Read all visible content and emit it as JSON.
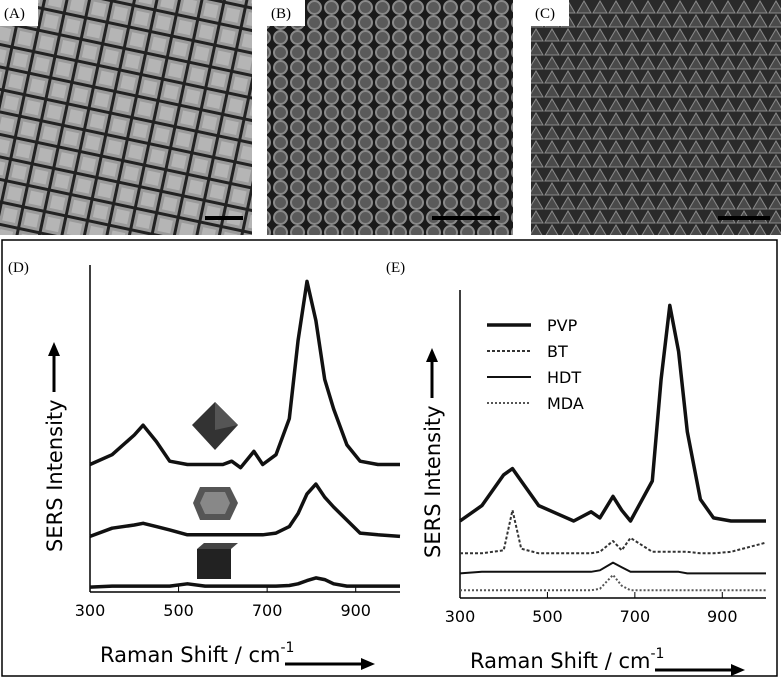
{
  "panels": [
    "(A)",
    "(B)",
    "(C)"
  ],
  "chart_data": [
    {
      "type": "line",
      "panel_label": "(D)",
      "x": [
        300,
        350,
        400,
        420,
        450,
        480,
        520,
        560,
        600,
        620,
        640,
        670,
        690,
        720,
        750,
        770,
        790,
        810,
        830,
        850,
        880,
        910,
        950,
        1000
      ],
      "series": [
        {
          "color": "#111111",
          "values": [
            39,
            42,
            48,
            51,
            46,
            40,
            39,
            39,
            39,
            40,
            38,
            43,
            39,
            42,
            53,
            77,
            95,
            83,
            65,
            56,
            45,
            40,
            39,
            39
          ]
        },
        {
          "color": "#111111",
          "values": [
            17,
            19.5,
            20.5,
            21,
            20,
            19,
            17.5,
            17.5,
            17.5,
            17.5,
            17.5,
            17.5,
            17.5,
            18,
            20,
            24,
            30,
            33,
            29,
            26,
            22,
            18,
            17.5,
            17
          ]
        },
        {
          "color": "#111111",
          "values": [
            1.5,
            1.8,
            1.8,
            1.8,
            1.8,
            1.8,
            2.5,
            1.8,
            1.8,
            1.8,
            1.8,
            1.8,
            1.8,
            1.8,
            2,
            2.5,
            3.5,
            4.3,
            3.8,
            2.5,
            1.8,
            1.8,
            1.8,
            1.8
          ]
        }
      ],
      "xlim": [
        300,
        1000
      ],
      "xticks": [
        300,
        500,
        700,
        900
      ],
      "ylim": [
        0,
        100
      ],
      "x_label": "Raman Shift / cm",
      "x_label_superscript": "-1",
      "y_label": "SERS Intensity"
    },
    {
      "type": "line",
      "panel_label": "(E)",
      "x": [
        300,
        350,
        400,
        420,
        440,
        480,
        520,
        560,
        600,
        620,
        650,
        670,
        690,
        740,
        760,
        780,
        800,
        820,
        850,
        880,
        920,
        1000
      ],
      "series": [
        {
          "name": "PVP",
          "color": "#111111",
          "width": 3.5,
          "dash": "none",
          "values": [
            25,
            30,
            40,
            42,
            38,
            30,
            27.5,
            25,
            28,
            26,
            33,
            28.5,
            25,
            38,
            71,
            95,
            80,
            54,
            32,
            26,
            25,
            25
          ]
        },
        {
          "name": "BT",
          "color": "#333333",
          "width": 2,
          "dash": "3 2",
          "values": [
            14.5,
            14.5,
            15.5,
            28.5,
            16,
            14.5,
            14.5,
            14.5,
            14.5,
            15,
            18.5,
            15.5,
            19.5,
            15,
            15,
            15,
            15,
            15,
            14.5,
            14.5,
            15,
            18
          ]
        },
        {
          "name": "HDT",
          "color": "#111111",
          "width": 2,
          "dash": "none",
          "values": [
            8,
            8.5,
            8.5,
            8.5,
            8.5,
            8.5,
            8.5,
            8.5,
            8.5,
            9,
            11.5,
            10,
            8.5,
            8.5,
            8.5,
            8.5,
            8.5,
            8,
            8,
            8,
            8,
            8
          ]
        },
        {
          "name": "MDA",
          "color": "#555555",
          "width": 2,
          "dash": "2 2",
          "values": [
            2.5,
            2.5,
            2.5,
            2.5,
            2.5,
            2.5,
            2.5,
            2.5,
            2.5,
            3,
            7.5,
            4,
            2.5,
            2.5,
            2.5,
            2.5,
            2.5,
            2.5,
            2.5,
            2.5,
            2.5,
            2.5
          ]
        }
      ],
      "xlim": [
        300,
        1000
      ],
      "xticks": [
        300,
        500,
        700,
        900
      ],
      "ylim": [
        0,
        100
      ],
      "x_label": "Raman Shift / cm",
      "x_label_superscript": "-1",
      "y_label": "SERS Intensity"
    }
  ]
}
